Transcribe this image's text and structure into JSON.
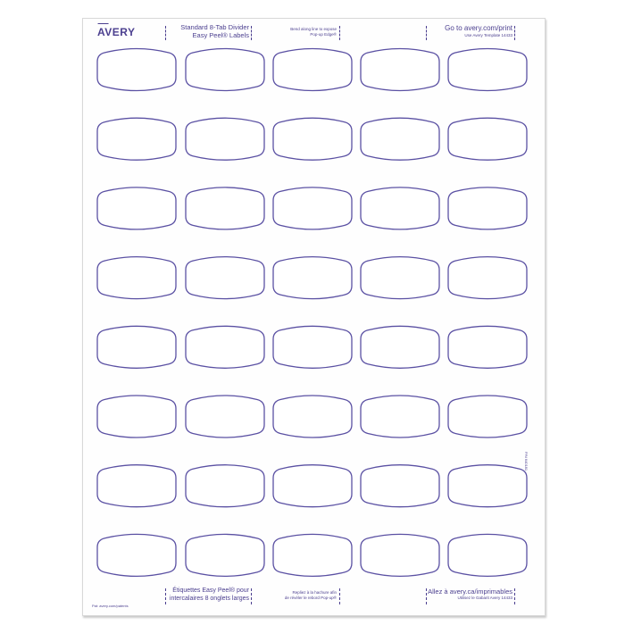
{
  "brand": "AVERY",
  "header": {
    "product_line1": "Standard 8-Tab Divider",
    "product_line2": "Easy Peel® Labels",
    "instruction_line1": "Bend along line to expose",
    "instruction_line2": "Pop-up Edge®",
    "website": "Go to avery.com/print",
    "template": "Use Avery Template 14433"
  },
  "footer": {
    "patents": "Pat: avery.com/patents",
    "product_line1": "Étiquettes Easy Peel® pour",
    "product_line2": "intercalaires 8 onglets larges",
    "instruction_line1": "Repliez à la hachure afin",
    "instruction_line2": "de révéler le rebord Pop-up®",
    "website": "Allez à avery.ca/imprimables",
    "template": "Utilisez le Gabarit Avery 14433"
  },
  "part_number": "P/N 640181",
  "labels": {
    "rows": 8,
    "columns": 5
  },
  "colors": {
    "outline": "#5b51a3",
    "text": "#4b3f8f"
  }
}
